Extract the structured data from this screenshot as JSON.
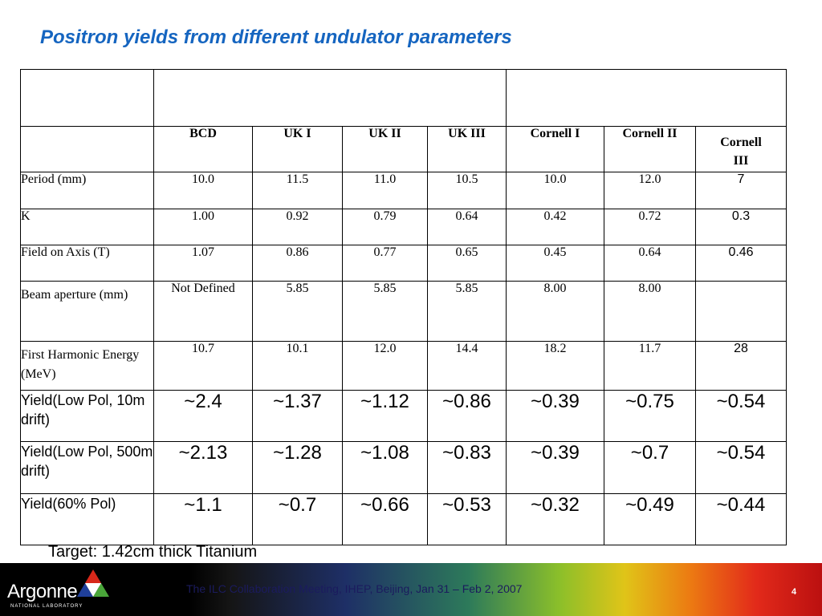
{
  "title": "Positron yields from different undulator parameters",
  "table": {
    "columns": [
      "BCD",
      "UK I",
      "UK II",
      "UK III",
      "Cornell I",
      "Cornell II",
      "Cornell III"
    ],
    "rows": [
      {
        "label": "Period (mm)",
        "values": [
          "10.0",
          "11.5",
          "11.0",
          "10.5",
          "10.0",
          "12.0",
          "7"
        ]
      },
      {
        "label": "K",
        "values": [
          "1.00",
          "0.92",
          "0.79",
          "0.64",
          "0.42",
          "0.72",
          "0.3"
        ]
      },
      {
        "label": "Field on Axis (T)",
        "values": [
          "1.07",
          "0.86",
          "0.77",
          "0.65",
          "0.45",
          "0.64",
          "0.46"
        ]
      },
      {
        "label": "Beam aperture (mm)",
        "values": [
          "Not Defined",
          "5.85",
          "5.85",
          "5.85",
          "8.00",
          "8.00",
          ""
        ]
      },
      {
        "label": "First Harmonic Energy (MeV)",
        "values": [
          "10.7",
          "10.1",
          "12.0",
          "14.4",
          "18.2",
          "11.7",
          "28"
        ]
      },
      {
        "label": "Yield(Low Pol, 10m drift)",
        "values": [
          "~2.4",
          "~1.37",
          "~1.12",
          "~0.86",
          "~0.39",
          "~0.75",
          "~0.54"
        ]
      },
      {
        "label": "Yield(Low Pol, 500m drift)",
        "values": [
          "~2.13",
          "~1.28",
          "~1.08",
          "~0.83",
          "~0.39",
          "~0.7",
          "~0.54"
        ]
      },
      {
        "label": "Yield(60% Pol)",
        "values": [
          "~1.1",
          "~0.7",
          "~0.66",
          "~0.53",
          "~0.32",
          "~0.49",
          "~0.44"
        ]
      }
    ]
  },
  "target_note": "Target: 1.42cm thick Titanium",
  "footer": {
    "logo": "Argonne",
    "logo_sub": "NATIONAL LABORATORY",
    "conference": "The ILC Collaboration Meeting, IHEP, Beijing, Jan 31 – Feb 2, 2007",
    "page_number": "4"
  },
  "colors": {
    "title": "#1565c0",
    "footer_text": "#1b1b5e",
    "logo_blue": "#1f3f9a",
    "logo_green": "#4aa63a",
    "logo_red": "#d8281a"
  }
}
